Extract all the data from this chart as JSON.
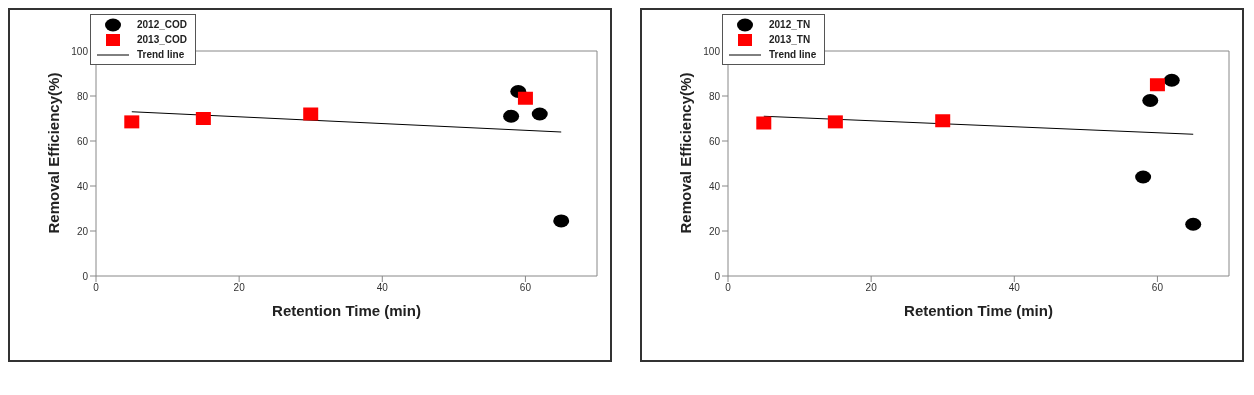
{
  "chart_data": [
    {
      "type": "scatter",
      "xlabel": "Retention Time (min)",
      "ylabel": "Removal Efficiency(%)",
      "xlim": [
        0,
        70
      ],
      "xticks": [
        0,
        20,
        40,
        60
      ],
      "ylim": [
        0,
        100
      ],
      "yticks": [
        0,
        20,
        40,
        60,
        80,
        100
      ],
      "grid": false,
      "legend": "top left",
      "series": [
        {
          "name": "2012_COD",
          "color": "#000000",
          "marker": "circle",
          "x": [
            58,
            59,
            62,
            65
          ],
          "values": [
            71,
            82,
            72,
            24.5
          ]
        },
        {
          "name": "2013_COD",
          "color": "#ff0000",
          "marker": "square",
          "x": [
            5,
            15,
            30,
            60
          ],
          "values": [
            68.5,
            70,
            72,
            79
          ]
        },
        {
          "name": "Trend line",
          "type": "line",
          "color": "#000000",
          "x": [
            5,
            65
          ],
          "values": [
            73,
            64
          ]
        }
      ]
    },
    {
      "type": "scatter",
      "xlabel": "Retention Time (min)",
      "ylabel": "Removal Efficiency(%)",
      "xlim": [
        0,
        70
      ],
      "xticks": [
        0,
        20,
        40,
        60
      ],
      "ylim": [
        0,
        100
      ],
      "yticks": [
        0,
        20,
        40,
        60,
        80,
        100
      ],
      "grid": false,
      "legend": "top left",
      "series": [
        {
          "name": "2012_TN",
          "color": "#000000",
          "marker": "circle",
          "x": [
            58,
            59,
            62,
            65
          ],
          "values": [
            44,
            78,
            87,
            23
          ]
        },
        {
          "name": "2013_TN",
          "color": "#ff0000",
          "marker": "square",
          "x": [
            5,
            15,
            30,
            60
          ],
          "values": [
            68,
            68.5,
            69,
            85
          ]
        },
        {
          "name": "Trend line",
          "type": "line",
          "color": "#000000",
          "x": [
            5,
            65
          ],
          "values": [
            71,
            63
          ]
        }
      ]
    }
  ]
}
